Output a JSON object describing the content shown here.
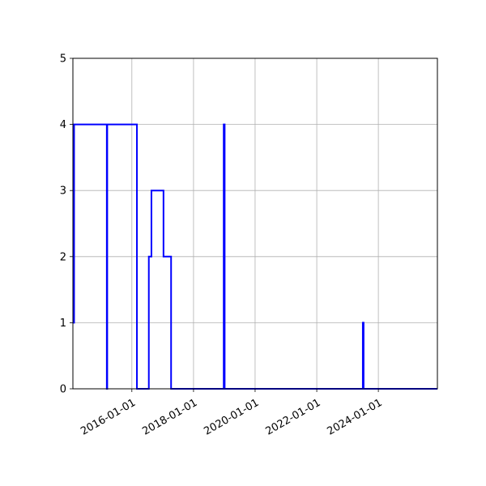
{
  "chart_data": {
    "type": "line",
    "step": "post",
    "x_axis_type": "date",
    "title": "",
    "xlabel": "",
    "ylabel": "",
    "xlim": [
      "2014-02-01",
      "2025-12-01"
    ],
    "ylim": [
      0,
      5
    ],
    "yticks": [
      0,
      1,
      2,
      3,
      4,
      5
    ],
    "xticks": [
      "2016-01-01",
      "2018-01-01",
      "2020-01-01",
      "2022-01-01",
      "2024-01-01"
    ],
    "xticks_unlabeled": [
      "2026-01-01"
    ],
    "grid": true,
    "legend": "none",
    "series": [
      {
        "color": "#0000ff",
        "x": [
          "2014-02-01",
          "2014-02-15",
          "2014-02-15",
          "2015-03-10",
          "2015-03-10",
          "2015-03-15",
          "2015-03-15",
          "2016-03-01",
          "2016-03-01",
          "2016-07-20",
          "2016-07-20",
          "2016-08-20",
          "2016-08-20",
          "2017-01-10",
          "2017-01-10",
          "2017-04-10",
          "2017-04-10",
          "2018-12-25",
          "2018-12-25",
          "2019-01-05",
          "2019-01-05",
          "2023-07-01",
          "2023-07-01",
          "2023-07-10",
          "2023-07-10",
          "2025-12-01"
        ],
        "y": [
          1,
          1,
          4,
          4,
          0,
          0,
          4,
          4,
          0,
          0,
          2,
          2,
          3,
          3,
          2,
          2,
          0,
          0,
          4,
          4,
          0,
          0,
          1,
          1,
          0,
          0
        ]
      }
    ]
  }
}
